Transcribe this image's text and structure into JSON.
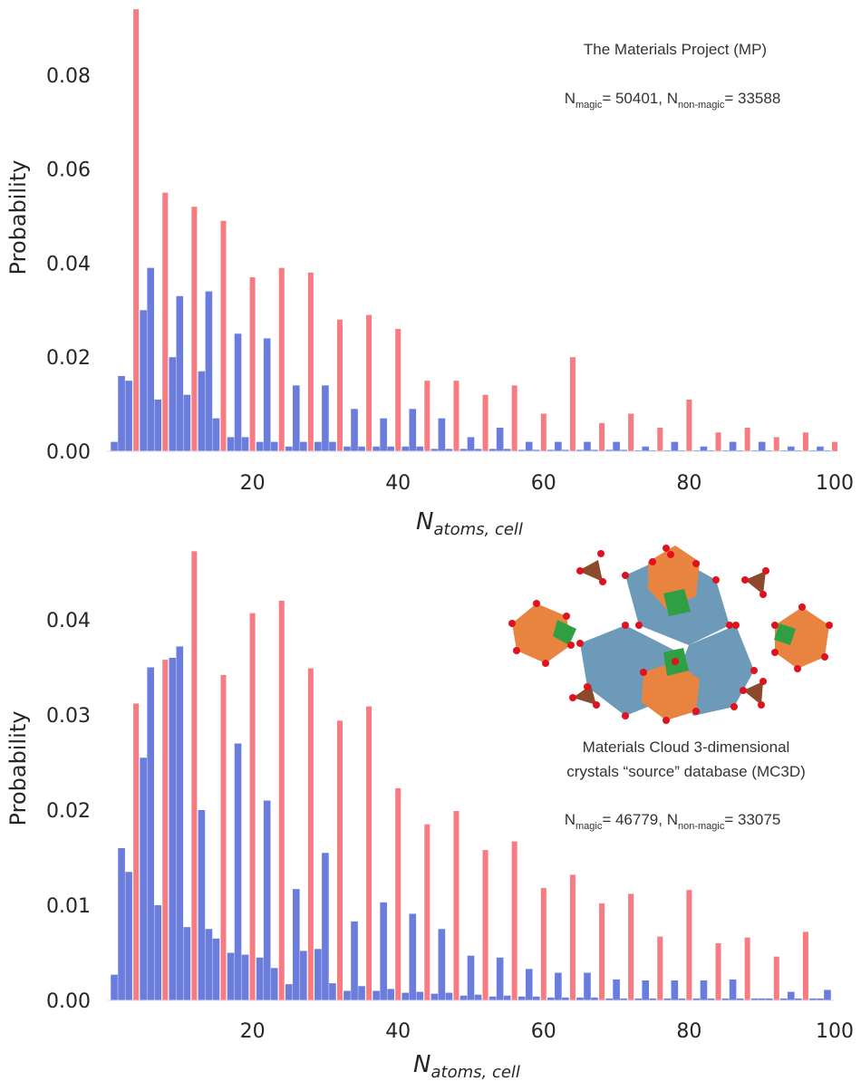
{
  "chart_data": [
    {
      "type": "bar",
      "title": "The Materials Project (MP)",
      "counts_text": {
        "n": "N",
        "magic_sub": "magic",
        "magic_count": "= 50401, ",
        "non_magic_sub": "non-magic",
        "non_magic_count": "= 33588"
      },
      "xlabel": {
        "base": "N",
        "sub": "atoms, cell"
      },
      "ylabel": "Probability",
      "xlim": [
        0,
        100
      ],
      "ylim": [
        0,
        0.095
      ],
      "xticks": [
        "20",
        "40",
        "60",
        "80",
        "100"
      ],
      "yticks": [
        "0.00",
        "0.02",
        "0.04",
        "0.06",
        "0.08"
      ],
      "xtick_values": [
        20,
        40,
        60,
        80,
        100
      ],
      "ytick_values": [
        0,
        0.02,
        0.04,
        0.06,
        0.08
      ],
      "legend": "none",
      "grid": false,
      "series": [
        {
          "color": "#6b7ddc",
          "x": [
            1,
            2,
            3,
            5,
            6,
            7,
            9,
            10,
            11,
            13,
            14,
            15,
            17,
            18,
            19,
            21,
            22,
            23,
            25,
            26,
            27,
            29,
            30,
            31,
            33,
            34,
            35,
            37,
            38,
            39,
            41,
            42,
            43,
            45,
            46,
            47,
            49,
            50,
            51,
            53,
            54,
            55,
            57,
            58,
            59,
            61,
            62,
            63,
            65,
            66,
            67,
            69,
            70,
            71,
            73,
            74,
            75,
            77,
            78,
            79,
            81,
            82,
            83,
            85,
            86,
            87,
            89,
            90,
            91,
            93,
            94,
            95,
            97,
            98,
            99
          ],
          "values": [
            0.002,
            0.016,
            0.015,
            0.03,
            0.039,
            0.011,
            0.02,
            0.033,
            0.012,
            0.017,
            0.034,
            0.007,
            0.003,
            0.025,
            0.003,
            0.002,
            0.024,
            0.002,
            0.001,
            0.014,
            0.002,
            0.002,
            0.014,
            0.002,
            0.001,
            0.009,
            0.001,
            0.001,
            0.007,
            0.001,
            0.001,
            0.009,
            0.001,
            0.0005,
            0.007,
            0.0005,
            0.0005,
            0.003,
            0.0005,
            0.0005,
            0.005,
            0.0005,
            0.0003,
            0.002,
            0.0003,
            0.0003,
            0.002,
            0.0003,
            0.0003,
            0.002,
            0.0003,
            0.0003,
            0.002,
            0.0003,
            0.0002,
            0.001,
            0.0002,
            0.0002,
            0.002,
            0.0002,
            0.0002,
            0.001,
            0.0002,
            0.0002,
            0.002,
            0.0002,
            0.0002,
            0.002,
            0.0002,
            0.0002,
            0.001,
            0.0002,
            0.0002,
            0.001,
            0.0002
          ]
        },
        {
          "color": "#f77b82",
          "x": [
            4,
            8,
            12,
            16,
            20,
            24,
            28,
            32,
            36,
            40,
            44,
            48,
            52,
            56,
            60,
            64,
            68,
            72,
            76,
            80,
            84,
            88,
            92,
            96,
            100
          ],
          "values": [
            0.094,
            0.055,
            0.052,
            0.049,
            0.037,
            0.039,
            0.038,
            0.028,
            0.029,
            0.026,
            0.015,
            0.015,
            0.012,
            0.014,
            0.008,
            0.02,
            0.006,
            0.008,
            0.005,
            0.011,
            0.004,
            0.005,
            0.003,
            0.004,
            0.002
          ]
        }
      ]
    },
    {
      "type": "bar",
      "title_line1": "Materials Cloud 3-dimensional",
      "title_line2": "crystals “source” database (MC3D)",
      "counts_text": {
        "n": "N",
        "magic_sub": "magic",
        "magic_count": "= 46779, ",
        "non_magic_sub": "non-magic",
        "non_magic_count": "= 33075"
      },
      "xlabel": {
        "base": "N",
        "sub": "atoms, cell"
      },
      "ylabel": "Probability",
      "xlim": [
        0,
        100
      ],
      "ylim": [
        0,
        0.048
      ],
      "xticks": [
        "20",
        "40",
        "60",
        "80",
        "100"
      ],
      "yticks": [
        "0.00",
        "0.01",
        "0.02",
        "0.03",
        "0.04"
      ],
      "xtick_values": [
        20,
        40,
        60,
        80,
        100
      ],
      "ytick_values": [
        0,
        0.01,
        0.02,
        0.03,
        0.04
      ],
      "legend": "none",
      "grid": false,
      "series": [
        {
          "color": "#6b7ddc",
          "x": [
            1,
            2,
            3,
            5,
            6,
            7,
            9,
            10,
            11,
            13,
            14,
            15,
            17,
            18,
            19,
            21,
            22,
            23,
            25,
            26,
            27,
            29,
            30,
            31,
            33,
            34,
            35,
            37,
            38,
            39,
            41,
            42,
            43,
            45,
            46,
            47,
            49,
            50,
            51,
            53,
            54,
            55,
            57,
            58,
            59,
            61,
            62,
            63,
            65,
            66,
            67,
            69,
            70,
            71,
            73,
            74,
            75,
            77,
            78,
            79,
            81,
            82,
            83,
            85,
            86,
            87,
            89,
            90,
            91,
            93,
            94,
            95,
            97,
            98,
            99
          ],
          "values": [
            0.0027,
            0.016,
            0.0135,
            0.0255,
            0.035,
            0.01,
            0.036,
            0.0372,
            0.0077,
            0.02,
            0.0075,
            0.0065,
            0.005,
            0.027,
            0.0048,
            0.0045,
            0.021,
            0.0034,
            0.0017,
            0.0117,
            0.0052,
            0.0054,
            0.0155,
            0.0018,
            0.001,
            0.0083,
            0.0015,
            0.001,
            0.0103,
            0.0012,
            0.0008,
            0.0091,
            0.0009,
            0.0007,
            0.0075,
            0.0008,
            0.0005,
            0.0047,
            0.0006,
            0.0004,
            0.0045,
            0.0005,
            0.0004,
            0.0033,
            0.0004,
            0.0003,
            0.0029,
            0.0003,
            0.0003,
            0.0029,
            0.0003,
            0.0002,
            0.0022,
            0.0002,
            0.0002,
            0.0021,
            0.0002,
            0.0002,
            0.0021,
            0.0002,
            0.0002,
            0.0021,
            0.0002,
            0.0002,
            0.0022,
            0.0002,
            0.0002,
            0.0002,
            0.0002,
            0.0002,
            0.0009,
            0.0002,
            0.0002,
            0.0002,
            0.0011
          ]
        },
        {
          "color": "#f77b82",
          "x": [
            4,
            8,
            12,
            16,
            20,
            24,
            28,
            32,
            36,
            40,
            44,
            48,
            52,
            56,
            60,
            64,
            68,
            72,
            76,
            80,
            84,
            88,
            92,
            96
          ],
          "values": [
            0.0312,
            0.0358,
            0.0472,
            0.0342,
            0.0407,
            0.042,
            0.0349,
            0.0294,
            0.0309,
            0.0223,
            0.0185,
            0.0199,
            0.0158,
            0.0167,
            0.0118,
            0.0132,
            0.0102,
            0.0112,
            0.0067,
            0.0116,
            0.006,
            0.0066,
            0.0046,
            0.0072
          ]
        }
      ]
    }
  ]
}
